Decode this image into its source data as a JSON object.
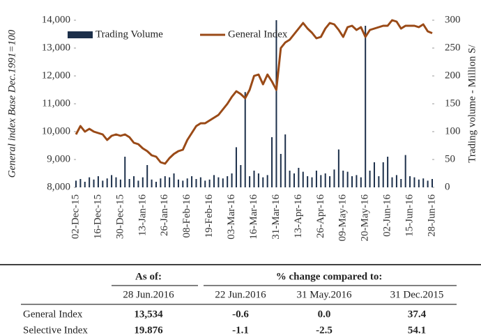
{
  "chart_data": {
    "type": "combo",
    "ylabel": "General index  Base Dec.1991=100",
    "y2label": "Trading volume - Million S/",
    "ylim": [
      8000,
      14000
    ],
    "yticks": [
      {
        "value": 8000,
        "label": "8,000"
      },
      {
        "value": 9000,
        "label": "9,000"
      },
      {
        "value": 10000,
        "label": "10,000"
      },
      {
        "value": 11000,
        "label": "11,000"
      },
      {
        "value": 12000,
        "label": "12,000"
      },
      {
        "value": 13000,
        "label": "13,000"
      },
      {
        "value": 14000,
        "label": "14,000"
      }
    ],
    "y2lim": [
      0,
      300
    ],
    "y2ticks": [
      0,
      50,
      100,
      150,
      200,
      250,
      300
    ],
    "legend": "upper left",
    "categories": [
      "02-Dec-15",
      null,
      null,
      null,
      null,
      "16-Dec-15",
      null,
      null,
      null,
      null,
      "30-Dec-15",
      null,
      null,
      null,
      null,
      "13-Jan-16",
      null,
      null,
      null,
      null,
      "26-Jan-16",
      null,
      null,
      null,
      null,
      "08-Feb-16",
      null,
      null,
      null,
      null,
      "19-Feb-16",
      null,
      null,
      null,
      null,
      "03-Mar-16",
      null,
      null,
      null,
      null,
      "16-Mar-16",
      null,
      null,
      null,
      null,
      "31-Mar-16",
      null,
      null,
      null,
      null,
      "13-Apr-16",
      null,
      null,
      null,
      null,
      "26-Apr-16",
      null,
      null,
      null,
      null,
      "09-May-16",
      null,
      null,
      null,
      null,
      "20-May-16",
      null,
      null,
      null,
      null,
      "02-Jun-16",
      null,
      null,
      null,
      null,
      "15-Jun-16",
      null,
      null,
      null,
      null,
      "28-Jun-16"
    ],
    "series": [
      {
        "name": "Trading Volume",
        "type": "bar",
        "axis": "y2",
        "color": "#1c2f4a",
        "values": [
          12,
          15,
          10,
          18,
          14,
          20,
          12,
          16,
          22,
          18,
          14,
          55,
          15,
          20,
          12,
          18,
          40,
          14,
          10,
          16,
          20,
          18,
          25,
          14,
          12,
          16,
          20,
          15,
          18,
          12,
          14,
          22,
          18,
          16,
          20,
          25,
          72,
          40,
          171,
          20,
          30,
          25,
          18,
          22,
          90,
          300,
          60,
          95,
          30,
          25,
          35,
          28,
          20,
          18,
          30,
          22,
          25,
          20,
          32,
          68,
          30,
          28,
          20,
          22,
          18,
          290,
          30,
          45,
          20,
          45,
          55,
          18,
          22,
          15,
          58,
          20,
          18,
          14,
          16,
          12,
          15
        ]
      },
      {
        "name": "General Index",
        "type": "line",
        "color": "#9a4a17",
        "values": [
          9900,
          10200,
          10000,
          10100,
          10000,
          9950,
          9900,
          9700,
          9850,
          9900,
          9850,
          9900,
          9800,
          9600,
          9550,
          9400,
          9300,
          9150,
          9100,
          8900,
          8850,
          9050,
          9200,
          9300,
          9350,
          9700,
          9950,
          10200,
          10300,
          10300,
          10400,
          10500,
          10600,
          10800,
          11000,
          11250,
          11450,
          11350,
          11200,
          11500,
          12000,
          12050,
          11700,
          12050,
          11800,
          11500,
          13000,
          13200,
          13300,
          13500,
          13700,
          13900,
          13700,
          13550,
          13350,
          13400,
          13700,
          13900,
          13850,
          13650,
          13400,
          13750,
          13800,
          13650,
          13750,
          13400,
          13650,
          13700,
          13750,
          13800,
          13800,
          14000,
          13950,
          13700,
          13800,
          13800,
          13800,
          13750,
          13850,
          13600,
          13534
        ]
      }
    ]
  },
  "table": {
    "header": [
      "As of:",
      "% change compared to:"
    ],
    "subheader": [
      "28 Jun.2016",
      "22 Jun.2016",
      "31 May.2016",
      "31 Dec.2015"
    ],
    "rows": [
      [
        "General Index",
        "13,534",
        "-0.6",
        "0.0",
        "37.4"
      ],
      [
        "Selective Index",
        "19.876",
        "-1.1",
        "-2.5",
        "54.1"
      ]
    ]
  }
}
